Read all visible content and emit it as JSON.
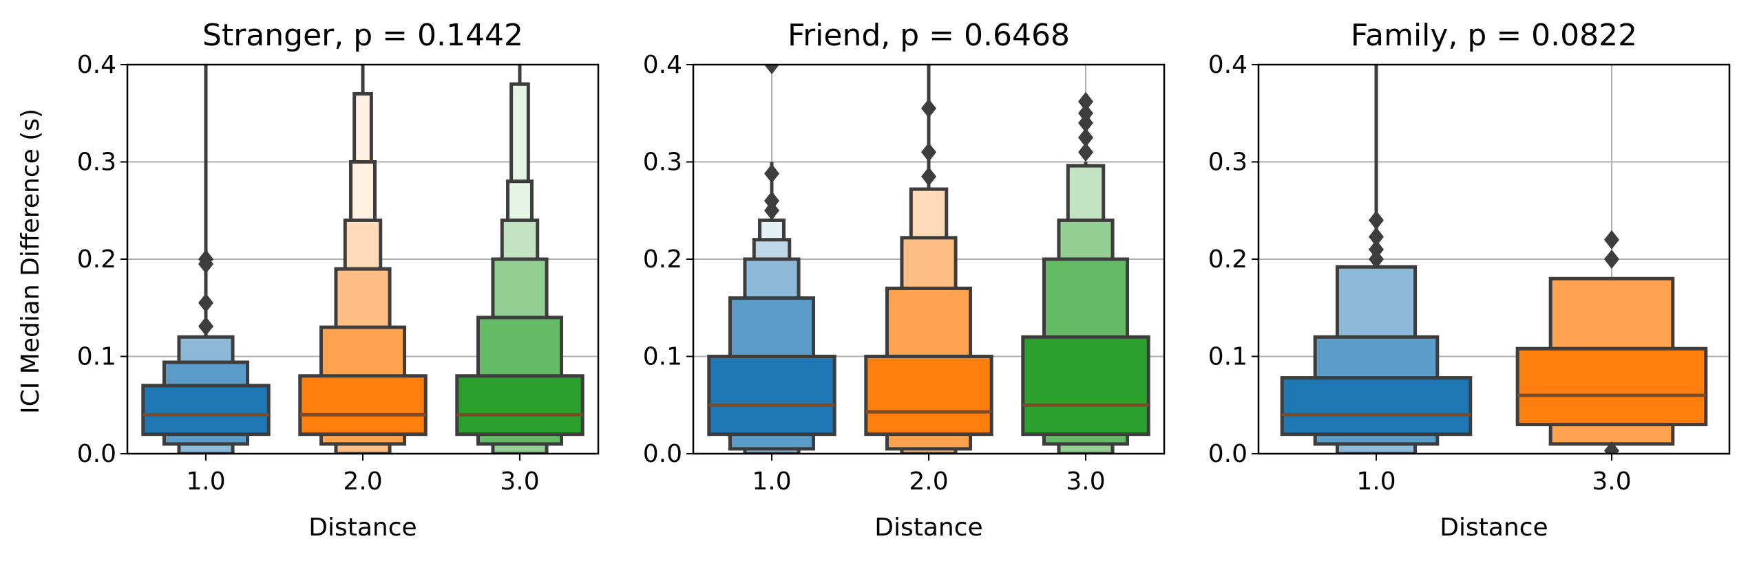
{
  "chart_data": {
    "type": "boxen",
    "ylabel": "ICI Median Difference (s)",
    "xlabel": "Distance",
    "ylim": [
      0,
      0.4
    ],
    "yticks": [
      "0.0",
      "0.1",
      "0.2",
      "0.3",
      "0.4"
    ],
    "grid": true,
    "series_colors": {
      "1.0": "#1f77b4",
      "2.0": "#ff7f0e",
      "3.0": "#2ca02c"
    },
    "panels": [
      {
        "title": "Stranger, p = 0.1442",
        "groups": [
          {
            "category": "1.0",
            "color": "#1f77b4",
            "median": 0.04,
            "levels": [
              [
                0.02,
                0.07
              ],
              [
                0.01,
                0.094
              ],
              [
                0.0,
                0.12
              ]
            ],
            "whisker": [
              0.12,
              0.4
            ],
            "outliers": [
              0.131,
              0.155,
              0.195,
              0.2
            ]
          },
          {
            "category": "2.0",
            "color": "#ff7f0e",
            "median": 0.04,
            "levels": [
              [
                0.02,
                0.08
              ],
              [
                0.01,
                0.13
              ],
              [
                0.0,
                0.19
              ],
              [
                0.0,
                0.24
              ],
              [
                0.0,
                0.3
              ],
              [
                0.0,
                0.37
              ]
            ],
            "whisker": [
              0.24,
              0.4
            ],
            "outliers": []
          },
          {
            "category": "3.0",
            "color": "#2ca02c",
            "median": 0.04,
            "levels": [
              [
                0.02,
                0.08
              ],
              [
                0.01,
                0.14
              ],
              [
                0.0,
                0.2
              ],
              [
                0.0,
                0.24
              ],
              [
                0.0,
                0.28
              ],
              [
                0.0,
                0.38
              ]
            ],
            "whisker": [
              0.24,
              0.4
            ],
            "outliers": []
          }
        ]
      },
      {
        "title": "Friend, p = 0.6468",
        "groups": [
          {
            "category": "1.0",
            "color": "#1f77b4",
            "median": 0.05,
            "levels": [
              [
                0.02,
                0.1
              ],
              [
                0.005,
                0.16
              ],
              [
                0.0,
                0.2
              ],
              [
                0.0,
                0.22
              ],
              [
                0.0,
                0.24
              ]
            ],
            "whisker": [
              0.24,
              0.3
            ],
            "outliers": [
              0.25,
              0.26,
              0.288,
              0.4
            ]
          },
          {
            "category": "2.0",
            "color": "#ff7f0e",
            "median": 0.043,
            "levels": [
              [
                0.02,
                0.1
              ],
              [
                0.005,
                0.17
              ],
              [
                0.0,
                0.222
              ],
              [
                0.0,
                0.272
              ]
            ],
            "whisker": [
              0.272,
              0.4
            ],
            "outliers": [
              0.285,
              0.31,
              0.355
            ]
          },
          {
            "category": "3.0",
            "color": "#2ca02c",
            "median": 0.05,
            "levels": [
              [
                0.02,
                0.12
              ],
              [
                0.01,
                0.2
              ],
              [
                0.0,
                0.24
              ],
              [
                0.0,
                0.296
              ]
            ],
            "whisker": [
              0.296,
              0.3
            ],
            "outliers": [
              0.31,
              0.325,
              0.34,
              0.35,
              0.362
            ]
          }
        ]
      },
      {
        "title": "Family, p = 0.0822",
        "groups": [
          {
            "category": "1.0",
            "color": "#1f77b4",
            "median": 0.04,
            "levels": [
              [
                0.02,
                0.078
              ],
              [
                0.01,
                0.12
              ],
              [
                0.0,
                0.192
              ]
            ],
            "whisker": [
              0.192,
              0.4
            ],
            "outliers": [
              0.2,
              0.21,
              0.223,
              0.24
            ]
          },
          {
            "category": "3.0",
            "color": "#ff7f0e",
            "median": 0.06,
            "levels": [
              [
                0.03,
                0.108
              ],
              [
                0.01,
                0.18
              ]
            ],
            "whisker": [
              0.18,
              0.18
            ],
            "outliers": [
              0.003,
              0.2,
              0.22
            ]
          }
        ]
      }
    ]
  }
}
